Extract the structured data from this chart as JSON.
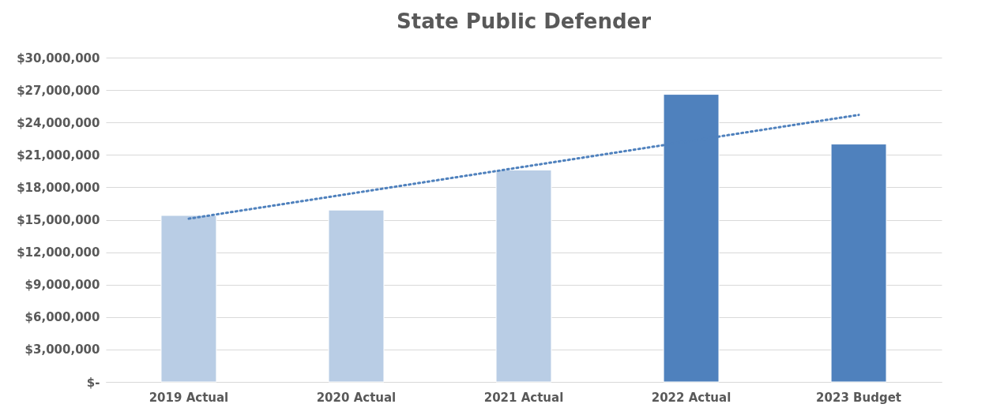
{
  "chart_data": {
    "type": "bar",
    "title": "State Public Defender",
    "categories": [
      "2019 Actual",
      "2020 Actual",
      "2021 Actual",
      "2022 Actual",
      "2023 Budget"
    ],
    "values": [
      15400000,
      15900000,
      19600000,
      26600000,
      22000000
    ],
    "colors": [
      "#b9cde5",
      "#b9cde5",
      "#b9cde5",
      "#4f81bd",
      "#4f81bd"
    ],
    "series": [
      {
        "type": "line",
        "x": [
          "2019 Actual",
          "2023 Budget"
        ],
        "values": [
          15100000,
          24700000
        ],
        "color": "#4f81bd",
        "line_style": "dotted"
      }
    ],
    "ylim": [
      0,
      30000000
    ],
    "yticks": [
      {
        "value": 0,
        "label": "$-"
      },
      {
        "value": 3000000,
        "label": "$3,000,000"
      },
      {
        "value": 6000000,
        "label": "$6,000,000"
      },
      {
        "value": 9000000,
        "label": "$9,000,000"
      },
      {
        "value": 12000000,
        "label": "$12,000,000"
      },
      {
        "value": 15000000,
        "label": "$15,000,000"
      },
      {
        "value": 18000000,
        "label": "$18,000,000"
      },
      {
        "value": 21000000,
        "label": "$21,000,000"
      },
      {
        "value": 24000000,
        "label": "$24,000,000"
      },
      {
        "value": 27000000,
        "label": "$27,000,000"
      },
      {
        "value": 30000000,
        "label": "$30,000,000"
      }
    ],
    "grid": "y"
  }
}
